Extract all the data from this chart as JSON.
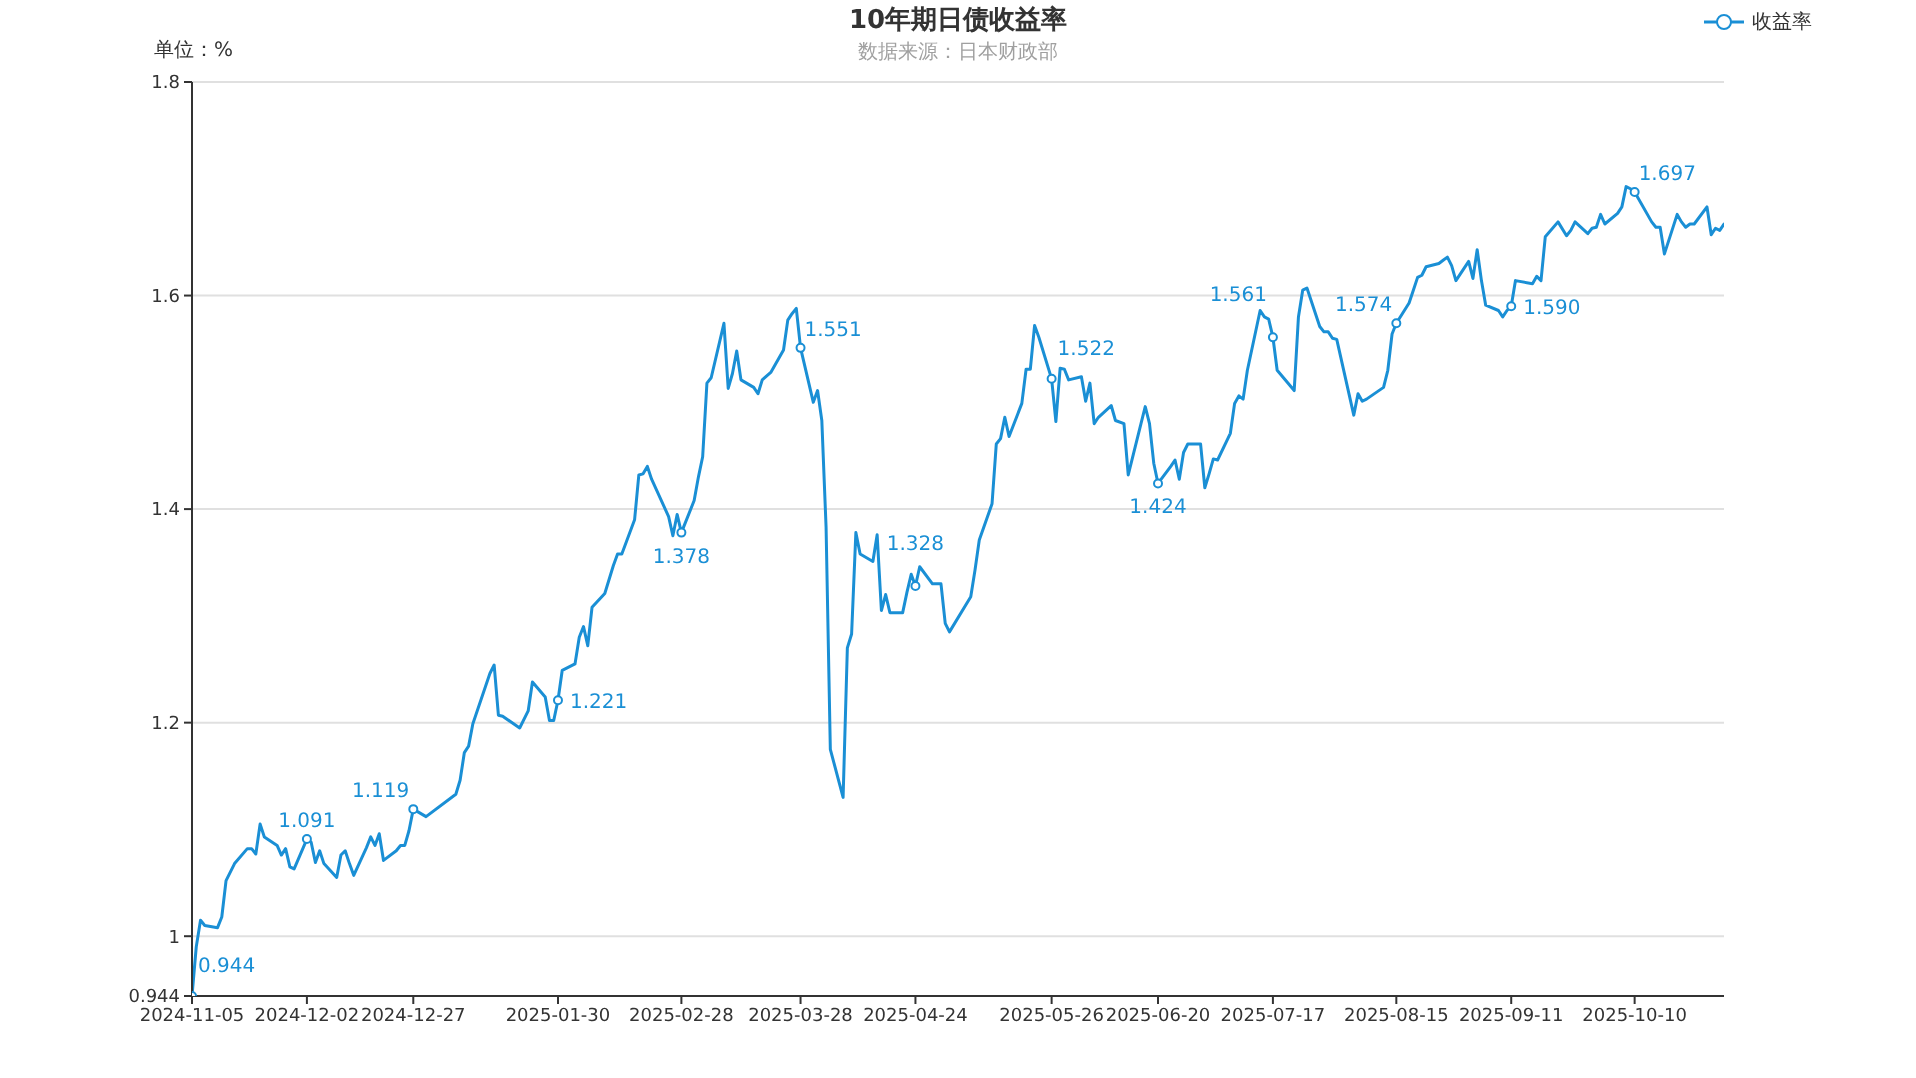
{
  "chart_data": {
    "type": "line",
    "title": "10年期日债收益率",
    "subtitle": "数据来源：日本财政部",
    "ylabel": "单位：%",
    "x": [
      "2024-11-05",
      "2024-11-06",
      "2024-11-07",
      "2024-11-08",
      "2024-11-11",
      "2024-11-12",
      "2024-11-13",
      "2024-11-15",
      "2024-11-18",
      "2024-11-19",
      "2024-11-20",
      "2024-11-21",
      "2024-11-22",
      "2024-11-25",
      "2024-11-26",
      "2024-11-27",
      "2024-11-28",
      "2024-11-29",
      "2024-12-02",
      "2024-12-03",
      "2024-12-04",
      "2024-12-05",
      "2024-12-06",
      "2024-12-09",
      "2024-12-10",
      "2024-12-11",
      "2024-12-12",
      "2024-12-13",
      "2024-12-16",
      "2024-12-17",
      "2024-12-18",
      "2024-12-19",
      "2024-12-20",
      "2024-12-23",
      "2024-12-24",
      "2024-12-25",
      "2024-12-26",
      "2024-12-27",
      "2024-12-30",
      "2025-01-06",
      "2025-01-07",
      "2025-01-08",
      "2025-01-09",
      "2025-01-10",
      "2025-01-14",
      "2025-01-15",
      "2025-01-16",
      "2025-01-17",
      "2025-01-21",
      "2025-01-23",
      "2025-01-24",
      "2025-01-27",
      "2025-01-28",
      "2025-01-29",
      "2025-01-30",
      "2025-01-31",
      "2025-02-03",
      "2025-02-04",
      "2025-02-05",
      "2025-02-06",
      "2025-02-07",
      "2025-02-10",
      "2025-02-12",
      "2025-02-13",
      "2025-02-14",
      "2025-02-17",
      "2025-02-18",
      "2025-02-19",
      "2025-02-20",
      "2025-02-21",
      "2025-02-25",
      "2025-02-26",
      "2025-02-27",
      "2025-02-28",
      "2025-03-03",
      "2025-03-04",
      "2025-03-05",
      "2025-03-06",
      "2025-03-07",
      "2025-03-10",
      "2025-03-11",
      "2025-03-12",
      "2025-03-13",
      "2025-03-14",
      "2025-03-17",
      "2025-03-18",
      "2025-03-19",
      "2025-03-21",
      "2025-03-24",
      "2025-03-25",
      "2025-03-26",
      "2025-03-27",
      "2025-03-28",
      "2025-03-31",
      "2025-04-01",
      "2025-04-02",
      "2025-04-03",
      "2025-04-04",
      "2025-04-07",
      "2025-04-08",
      "2025-04-09",
      "2025-04-10",
      "2025-04-11",
      "2025-04-14",
      "2025-04-15",
      "2025-04-16",
      "2025-04-17",
      "2025-04-18",
      "2025-04-21",
      "2025-04-22",
      "2025-04-23",
      "2025-04-24",
      "2025-04-25",
      "2025-04-28",
      "2025-04-30",
      "2025-05-01",
      "2025-05-02",
      "2025-05-07",
      "2025-05-08",
      "2025-05-09",
      "2025-05-12",
      "2025-05-13",
      "2025-05-14",
      "2025-05-15",
      "2025-05-16",
      "2025-05-19",
      "2025-05-20",
      "2025-05-21",
      "2025-05-22",
      "2025-05-23",
      "2025-05-26",
      "2025-05-27",
      "2025-05-28",
      "2025-05-29",
      "2025-05-30",
      "2025-06-02",
      "2025-06-03",
      "2025-06-04",
      "2025-06-05",
      "2025-06-06",
      "2025-06-09",
      "2025-06-10",
      "2025-06-12",
      "2025-06-13",
      "2025-06-16",
      "2025-06-17",
      "2025-06-18",
      "2025-06-19",
      "2025-06-20",
      "2025-06-23",
      "2025-06-24",
      "2025-06-25",
      "2025-06-26",
      "2025-06-27",
      "2025-06-30",
      "2025-07-01",
      "2025-07-02",
      "2025-07-03",
      "2025-07-04",
      "2025-07-07",
      "2025-07-08",
      "2025-07-09",
      "2025-07-10",
      "2025-07-11",
      "2025-07-14",
      "2025-07-15",
      "2025-07-16",
      "2025-07-17",
      "2025-07-18",
      "2025-07-22",
      "2025-07-23",
      "2025-07-24",
      "2025-07-25",
      "2025-07-28",
      "2025-07-29",
      "2025-07-30",
      "2025-07-31",
      "2025-08-01",
      "2025-08-05",
      "2025-08-06",
      "2025-08-07",
      "2025-08-08",
      "2025-08-12",
      "2025-08-13",
      "2025-08-14",
      "2025-08-15",
      "2025-08-18",
      "2025-08-19",
      "2025-08-20",
      "2025-08-21",
      "2025-08-22",
      "2025-08-25",
      "2025-08-26",
      "2025-08-27",
      "2025-08-28",
      "2025-08-29",
      "2025-09-01",
      "2025-09-02",
      "2025-09-03",
      "2025-09-04",
      "2025-09-05",
      "2025-09-08",
      "2025-09-09",
      "2025-09-10",
      "2025-09-11",
      "2025-09-12",
      "2025-09-16",
      "2025-09-17",
      "2025-09-18",
      "2025-09-19",
      "2025-09-22",
      "2025-09-24",
      "2025-09-25",
      "2025-09-26",
      "2025-09-29",
      "2025-09-30",
      "2025-10-01",
      "2025-10-02",
      "2025-10-03",
      "2025-10-06",
      "2025-10-07",
      "2025-10-08",
      "2025-10-09",
      "2025-10-10",
      "2025-10-14",
      "2025-10-15",
      "2025-10-16",
      "2025-10-17",
      "2025-10-20",
      "2025-10-21",
      "2025-10-22",
      "2025-10-23",
      "2025-10-24",
      "2025-10-27",
      "2025-10-28",
      "2025-10-29",
      "2025-10-30",
      "2025-10-31"
    ],
    "series": [
      {
        "name": "收益率",
        "color": "#1a8fd5",
        "values": [
          0.944,
          0.99,
          1.015,
          1.01,
          1.008,
          1.018,
          1.052,
          1.068,
          1.082,
          1.082,
          1.077,
          1.105,
          1.093,
          1.085,
          1.076,
          1.082,
          1.065,
          1.063,
          1.091,
          1.088,
          1.069,
          1.08,
          1.068,
          1.055,
          1.076,
          1.08,
          1.068,
          1.057,
          1.083,
          1.093,
          1.085,
          1.096,
          1.071,
          1.08,
          1.085,
          1.085,
          1.099,
          1.119,
          1.112,
          1.133,
          1.146,
          1.172,
          1.178,
          1.199,
          1.246,
          1.254,
          1.207,
          1.206,
          1.195,
          1.211,
          1.238,
          1.224,
          1.202,
          1.202,
          1.221,
          1.249,
          1.255,
          1.28,
          1.29,
          1.272,
          1.308,
          1.321,
          1.347,
          1.358,
          1.358,
          1.39,
          1.432,
          1.433,
          1.44,
          1.428,
          1.393,
          1.375,
          1.395,
          1.378,
          1.408,
          1.43,
          1.449,
          1.518,
          1.523,
          1.574,
          1.513,
          1.527,
          1.548,
          1.521,
          1.514,
          1.508,
          1.521,
          1.528,
          1.549,
          1.577,
          1.583,
          1.588,
          1.551,
          1.5,
          1.511,
          1.483,
          1.383,
          1.175,
          1.13,
          1.27,
          1.283,
          1.378,
          1.358,
          1.351,
          1.376,
          1.305,
          1.32,
          1.303,
          1.303,
          1.322,
          1.339,
          1.328,
          1.346,
          1.33,
          1.33,
          1.293,
          1.285,
          1.318,
          1.343,
          1.371,
          1.405,
          1.461,
          1.466,
          1.486,
          1.468,
          1.499,
          1.531,
          1.531,
          1.572,
          1.561,
          1.522,
          1.482,
          1.532,
          1.531,
          1.521,
          1.524,
          1.501,
          1.518,
          1.48,
          1.486,
          1.497,
          1.483,
          1.48,
          1.432,
          1.48,
          1.496,
          1.48,
          1.443,
          1.424,
          1.44,
          1.446,
          1.428,
          1.453,
          1.461,
          1.461,
          1.42,
          1.433,
          1.447,
          1.446,
          1.471,
          1.499,
          1.506,
          1.503,
          1.53,
          1.586,
          1.58,
          1.578,
          1.561,
          1.53,
          1.511,
          1.58,
          1.605,
          1.607,
          1.571,
          1.566,
          1.566,
          1.56,
          1.559,
          1.488,
          1.508,
          1.501,
          1.503,
          1.514,
          1.53,
          1.564,
          1.574,
          1.593,
          1.605,
          1.617,
          1.619,
          1.627,
          1.63,
          1.633,
          1.636,
          1.628,
          1.614,
          1.632,
          1.616,
          1.643,
          1.614,
          1.591,
          1.586,
          1.58,
          1.586,
          1.59,
          1.614,
          1.611,
          1.618,
          1.614,
          1.655,
          1.669,
          1.656,
          1.661,
          1.669,
          1.658,
          1.663,
          1.664,
          1.676,
          1.667,
          1.677,
          1.683,
          1.702,
          1.7,
          1.697,
          1.669,
          1.664,
          1.664,
          1.639,
          1.676,
          1.669,
          1.664,
          1.667,
          1.667,
          1.683,
          1.657,
          1.663,
          1.661,
          1.667
        ],
        "value_labels": [
          "0.944",
          null,
          null,
          null,
          null,
          null,
          null,
          null,
          null,
          null,
          null,
          null,
          null,
          null,
          null,
          null,
          null,
          null,
          "1.091",
          null,
          null,
          null,
          null,
          null,
          null,
          null,
          null,
          null,
          null,
          null,
          null,
          null,
          null,
          null,
          null,
          null,
          null,
          "1.119",
          null,
          null,
          null,
          null,
          null,
          null,
          null,
          null,
          null,
          null,
          null,
          null,
          null,
          null,
          null,
          null,
          "1.221",
          null,
          null,
          null,
          null,
          null,
          null,
          null,
          null,
          null,
          null,
          null,
          null,
          null,
          null,
          null,
          null,
          null,
          null,
          "1.378",
          null,
          null,
          null,
          null,
          null,
          null,
          null,
          null,
          null,
          null,
          null,
          null,
          null,
          null,
          null,
          null,
          null,
          null,
          "1.551",
          null,
          null,
          null,
          null,
          null,
          null,
          null,
          null,
          null,
          null,
          null,
          null,
          null,
          null,
          null,
          null,
          null,
          null,
          "1.328",
          null,
          null,
          null,
          null,
          null,
          null,
          null,
          null,
          null,
          null,
          null,
          null,
          null,
          null,
          null,
          null,
          null,
          null,
          "1.522",
          null,
          null,
          null,
          null,
          null,
          null,
          null,
          null,
          null,
          null,
          null,
          null,
          null,
          null,
          null,
          null,
          null,
          "1.424",
          null,
          null,
          null,
          null,
          null,
          null,
          null,
          null,
          null,
          null,
          null,
          null,
          null,
          null,
          null,
          null,
          null,
          null,
          "1.561",
          null,
          null,
          null,
          null,
          null,
          null,
          null,
          null,
          null,
          null,
          null,
          null,
          null,
          null,
          null,
          null,
          null,
          "1.574",
          null,
          null,
          null,
          null,
          null,
          null,
          null,
          null,
          null,
          null,
          null,
          null,
          null,
          null,
          null,
          null,
          null,
          null,
          "1.590",
          null,
          null,
          null,
          null,
          null,
          null,
          null,
          null,
          null,
          null,
          null,
          null,
          null,
          null,
          null,
          null,
          null,
          null,
          "1.697",
          null,
          null,
          null,
          null,
          null,
          null,
          null,
          null,
          null,
          null,
          null,
          null,
          null,
          null
        ]
      }
    ],
    "xlim": [
      "2024-11-05",
      "2025-10-31"
    ],
    "xticks": [
      "2024-11-05",
      "2024-12-02",
      "2024-12-27",
      "2025-01-30",
      "2025-02-28",
      "2025-03-28",
      "2025-04-24",
      "2025-05-26",
      "2025-06-20",
      "2025-07-17",
      "2025-08-15",
      "2025-09-11",
      "2025-10-10"
    ],
    "ylim": [
      0.944,
      1.8
    ],
    "yticks": [
      0.944,
      1,
      1.2,
      1.4,
      1.6,
      1.8
    ],
    "grid": "y",
    "legend": "top right",
    "line_style": "solid"
  }
}
